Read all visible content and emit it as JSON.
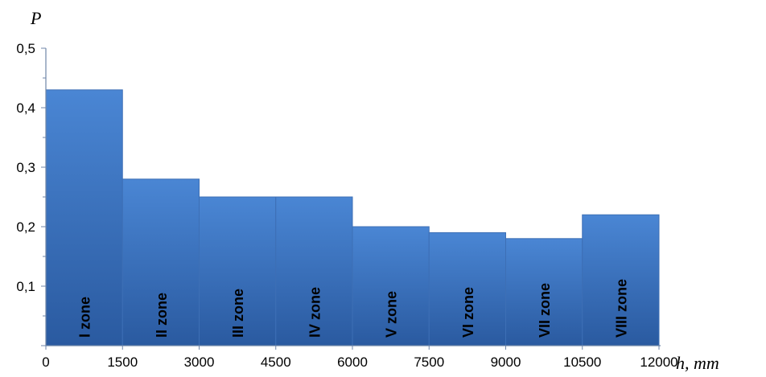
{
  "chart_data": {
    "type": "bar",
    "title": "",
    "ylabel": "P",
    "xlabel": "h, mm",
    "x_ticks": [
      "0",
      "1500",
      "3000",
      "4500",
      "6000",
      "7500",
      "9000",
      "10500",
      "12000"
    ],
    "y_ticks": [
      "0,1",
      "0,2",
      "0,3",
      "0,4",
      "0,5"
    ],
    "ylim": [
      0,
      0.5
    ],
    "xlim": [
      0,
      12000
    ],
    "grid": false,
    "legend": "none",
    "bars": [
      {
        "label": "I zone",
        "x_start": 0,
        "x_end": 1500,
        "value": 0.43
      },
      {
        "label": "II zone",
        "x_start": 1500,
        "x_end": 3000,
        "value": 0.28
      },
      {
        "label": "III zone",
        "x_start": 3000,
        "x_end": 4500,
        "value": 0.25
      },
      {
        "label": "IV zone",
        "x_start": 4500,
        "x_end": 6000,
        "value": 0.25
      },
      {
        "label": "V zone",
        "x_start": 6000,
        "x_end": 7500,
        "value": 0.2
      },
      {
        "label": "VI zone",
        "x_start": 7500,
        "x_end": 9000,
        "value": 0.19
      },
      {
        "label": "VII zone",
        "x_start": 9000,
        "x_end": 10500,
        "value": 0.18
      },
      {
        "label": "VIII zone",
        "x_start": 10500,
        "x_end": 12000,
        "value": 0.22
      }
    ],
    "colors": {
      "bar_top": "#4a86d4",
      "bar_bottom": "#2a5aa0",
      "bar_stroke": "#3d6fb5",
      "axis": "#6f86a8"
    }
  }
}
